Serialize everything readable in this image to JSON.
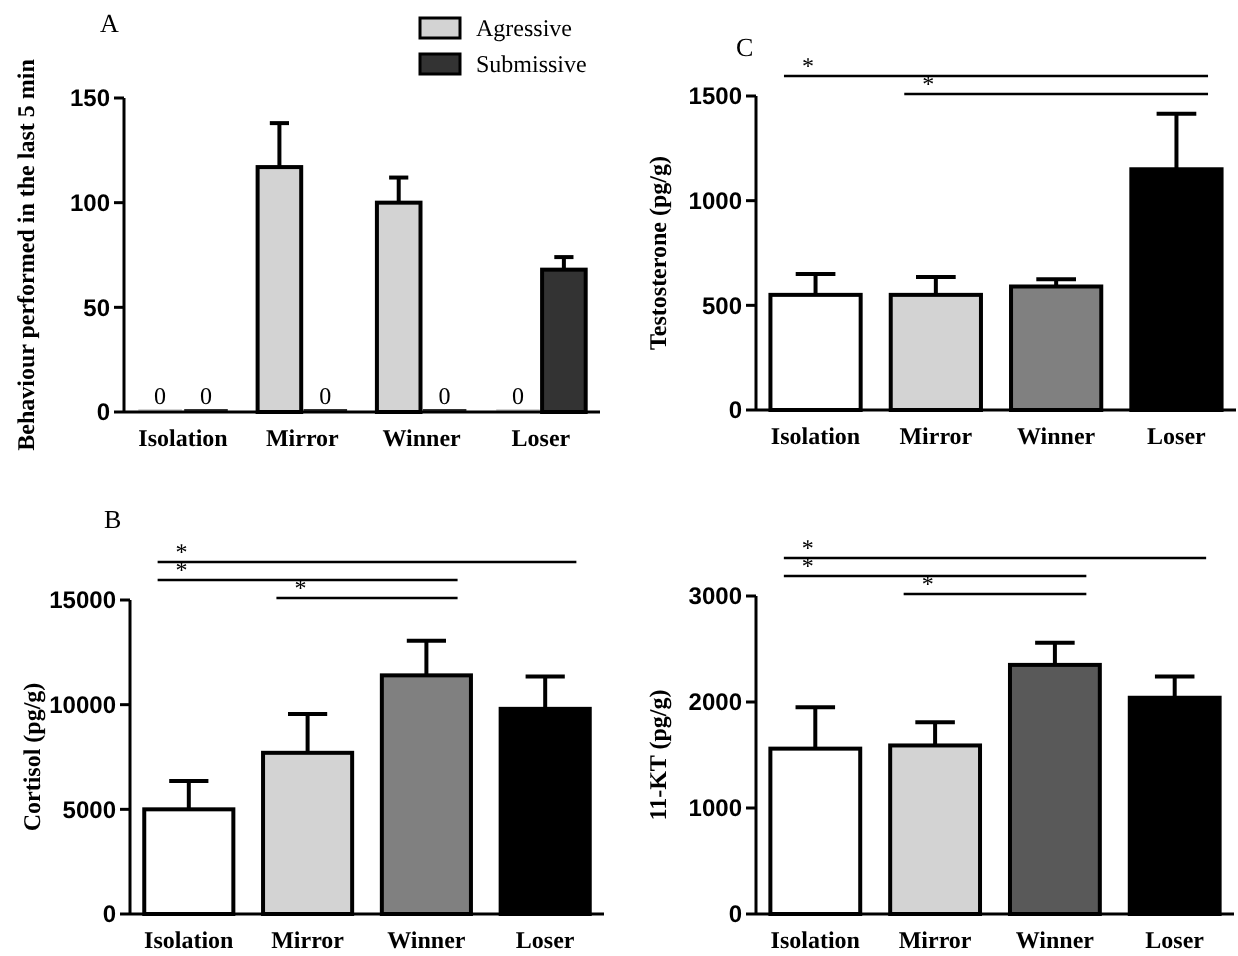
{
  "chart_data": [
    {
      "type": "bar",
      "title": "A",
      "ylabel": "Behaviour performed in the last 5 min",
      "categories": [
        "Isolation",
        "Mirror",
        "Winner",
        "Loser"
      ],
      "ylim": [
        0,
        150
      ],
      "yticks": [
        0,
        50,
        100,
        150
      ],
      "legend": "top right",
      "series": [
        {
          "name": "Agressive",
          "color": "#d3d3d3",
          "values": [
            0,
            117,
            100,
            0
          ],
          "errors": [
            null,
            21,
            12,
            null
          ],
          "value_labels": [
            "0",
            null,
            null,
            "0"
          ]
        },
        {
          "name": "Submissive",
          "color": "#333333",
          "values": [
            0,
            0,
            0,
            68
          ],
          "errors": [
            null,
            null,
            null,
            6
          ],
          "value_labels": [
            "0",
            "0",
            "0",
            null
          ]
        }
      ]
    },
    {
      "type": "bar",
      "title": "C",
      "ylabel": "Testosterone (pg/g)",
      "categories": [
        "Isolation",
        "Mirror",
        "Winner",
        "Loser"
      ],
      "ylim": [
        0,
        1500
      ],
      "yticks": [
        0,
        500,
        1000,
        1500
      ],
      "values": [
        550,
        550,
        590,
        1150
      ],
      "errors": [
        100,
        85,
        35,
        265
      ],
      "colors": [
        "#ffffff",
        "#d3d3d3",
        "#808080",
        "#000000"
      ],
      "annotations": [
        "*",
        "*"
      ]
    },
    {
      "type": "bar",
      "title": "B",
      "ylabel": "Cortisol (pg/g)",
      "categories": [
        "Isolation",
        "Mirror",
        "Winner",
        "Loser"
      ],
      "ylim": [
        0,
        15000
      ],
      "yticks": [
        0,
        5000,
        10000,
        15000
      ],
      "values": [
        5000,
        7700,
        11400,
        9800
      ],
      "errors": [
        1350,
        1850,
        1650,
        1550
      ],
      "colors": [
        "#ffffff",
        "#d3d3d3",
        "#808080",
        "#000000"
      ],
      "annotations": [
        "*",
        "*",
        "*"
      ]
    },
    {
      "type": "bar",
      "ylabel": "11-KT (pg/g)",
      "categories": [
        "Isolation",
        "Mirror",
        "Winner",
        "Loser"
      ],
      "ylim": [
        0,
        3000
      ],
      "yticks": [
        0,
        1000,
        2000,
        3000
      ],
      "values": [
        1560,
        1590,
        2350,
        2040
      ],
      "errors": [
        390,
        220,
        210,
        200
      ],
      "colors": [
        "#ffffff",
        "#d3d3d3",
        "#595959",
        "#000000"
      ],
      "annotations": [
        "*",
        "*",
        "*"
      ]
    }
  ]
}
